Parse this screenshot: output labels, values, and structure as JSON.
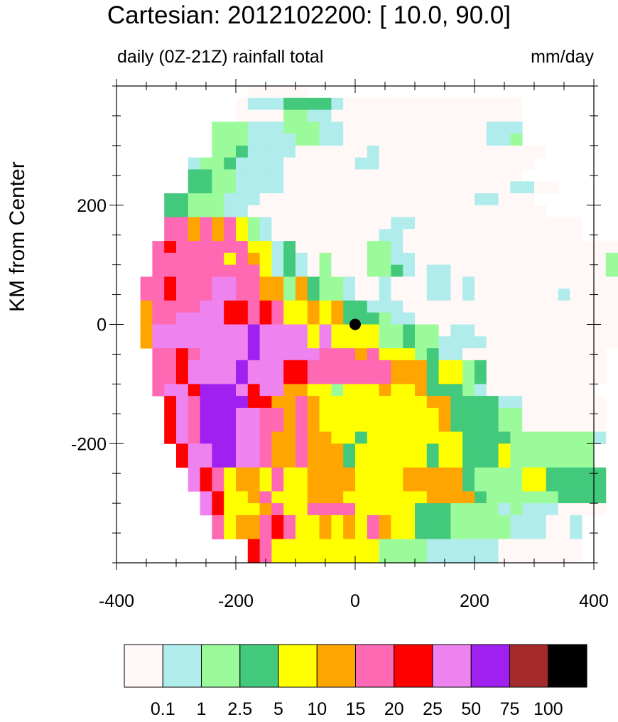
{
  "chart_data": {
    "type": "heatmap",
    "title": "Cartesian: 2012102200: [ 10.0, 90.0]",
    "left_subtitle": "daily (0Z-21Z) rainfall total",
    "right_subtitle": "mm/day",
    "xlabel": "",
    "ylabel": "KM from Center",
    "xlim": [
      -400,
      400
    ],
    "ylim": [
      -400,
      400
    ],
    "x_ticks": [
      -400,
      -200,
      0,
      200,
      400
    ],
    "y_ticks": [
      -200,
      0,
      200
    ],
    "center_marker": {
      "x": 0,
      "y": 0
    },
    "grid_step_km": 20,
    "domain_radius_km": 360,
    "color_levels": [
      {
        "color": "#fff8f6"
      },
      {
        "color": "#b0ecec"
      },
      {
        "color": "#9bfb9b"
      },
      {
        "color": "#43c97c"
      },
      {
        "color": "#ffff00"
      },
      {
        "color": "#ffa500"
      },
      {
        "color": "#ff69b4"
      },
      {
        "color": "#ff0000"
      },
      {
        "color": "#ee82ee"
      },
      {
        "color": "#a020f0"
      },
      {
        "color": "#a52a2a"
      },
      {
        "color": "#000000"
      }
    ],
    "colorbar_labels": [
      "0.1",
      "1",
      "2.5",
      "5",
      "10",
      "15",
      "20",
      "25",
      "50",
      "75",
      "100"
    ],
    "grid_rows": [
      {
        "y": 380,
        "cells": "...........00000..........................."
      },
      {
        "y": 360,
        "cells": "..........011133331000000000000000.........."
      },
      {
        "y": 340,
        "cells": "..........000022110000000000000000.........."
      },
      {
        "y": 320,
        "cells": "........22211122211000000000000111..........."
      },
      {
        "y": 300,
        "cells": "........22211112211000000000000112..........."
      },
      {
        "y": 280,
        "cells": "........2231111000000100000000000000........."
      },
      {
        "y": 260,
        "cells": "......12231111000000110000000000000........."
      },
      {
        "y": 240,
        "cells": "......3322111100000000000000000000.........."
      },
      {
        "y": 220,
        "cells": "......3322111100000000000000000001100......."
      },
      {
        "y": 200,
        "cells": "....3322211100000000000000000011000......."
      },
      {
        "y": 180,
        "cells": "....33222110000000000000000000000000......."
      },
      {
        "y": 160,
        "cells": "....66565642100000000001100000000000000...."
      },
      {
        "y": 140,
        "cells": "....66565642100000000011000000000000000...."
      },
      {
        "y": 120,
        "cells": "...676666664413000000221000000000000000000.."
      },
      {
        "y": 100,
        "cells": "...666666465413102000221100000000000000002.."
      },
      {
        "y": 80,
        "cells": "...666666666413102000223101100000000000002.."
      },
      {
        "y": 60,
        "cells": "..6676668866552532210010001101000000000000..."
      },
      {
        "y": 40,
        "cells": "..6676668866552532210010001101000000010000..."
      },
      {
        "y": 20,
        "cells": "..56666887767644545331110000000000000000000.."
      },
      {
        "y": 0,
        "cells": "..56688887767644545333211000000000000000000.."
      },
      {
        "y": -20,
        "cells": "..58888888898888484444223220110000000000000.."
      },
      {
        "y": -40,
        "cells": "..58888888898888484444223221111000000000000.."
      },
      {
        "y": -60,
        "cells": "...66768888988888666564442311000000000000..."
      },
      {
        "y": -80,
        "cells": "...66788889888776666666555344230000000000..."
      },
      {
        "y": -100,
        "cells": "...66788889888776666666555344230000000000..."
      },
      {
        "y": -120,
        "cells": "...6887999878855442444544533321000000000...."
      },
      {
        "y": -140,
        "cells": "....7869999775565444444444553333110000000...."
      },
      {
        "y": -160,
        "cells": "....7869998866565444444444453333220000000...."
      },
      {
        "y": -180,
        "cells": "....7869998866565444444444453333220000000...."
      },
      {
        "y": -200,
        "cells": "....7869998865565544344444444333322222221...."
      },
      {
        "y": -220,
        "cells": ".....78899886556555344444434433342222222....."
      },
      {
        "y": -240,
        "cells": ".....78899886556555344444434433342222222....."
      },
      {
        "y": -260,
        "cells": "......87645546445555444455555322224433333....."
      },
      {
        "y": -280,
        "cells": "......87645546445555444455555322224433333....."
      },
      {
        "y": -300,
        "cells": ".......8744564445554444444555532222223333....."
      },
      {
        "y": -320,
        "cells": ".......8744456446666444443332222121110000....."
      },
      {
        "y": -340,
        "cells": "........6455676445454654433322222111001......"
      },
      {
        "y": -360,
        "cells": "........6455676445454654433322222111001......"
      },
      {
        "y": -380,
        "cells": "...........7644444444422221111110000000......."
      },
      {
        "y": -400,
        "cells": "...........7644444444422221111110000000......."
      }
    ]
  }
}
